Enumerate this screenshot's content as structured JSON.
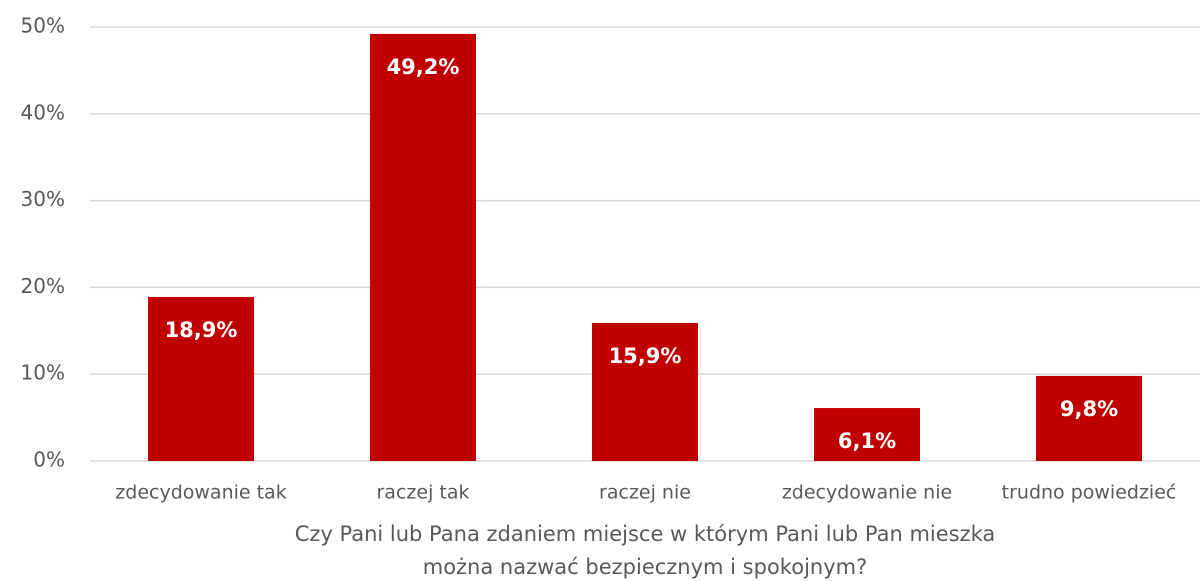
{
  "chart_data": {
    "type": "bar",
    "categories": [
      "zdecydowanie tak",
      "raczej tak",
      "raczej nie",
      "zdecydowanie nie",
      "trudno powiedzieć"
    ],
    "values": [
      18.9,
      49.2,
      15.9,
      6.1,
      9.8
    ],
    "value_labels": [
      "18,9%",
      "49,2%",
      "15,9%",
      "6,1%",
      "9,8%"
    ],
    "color": "#c00000",
    "x_label": [
      "Czy Pani lub Pana zdaniem miejsce w którym Pani lub Pan mieszka",
      "można nazwać bezpiecznym i spokojnym?"
    ],
    "ylim": [
      0,
      50
    ],
    "yticks": [
      {
        "value": 0,
        "label": "0%"
      },
      {
        "value": 10,
        "label": "10%"
      },
      {
        "value": 20,
        "label": "20%"
      },
      {
        "value": 30,
        "label": "30%"
      },
      {
        "value": 40,
        "label": "40%"
      },
      {
        "value": 50,
        "label": "50%"
      }
    ],
    "grid": true
  }
}
